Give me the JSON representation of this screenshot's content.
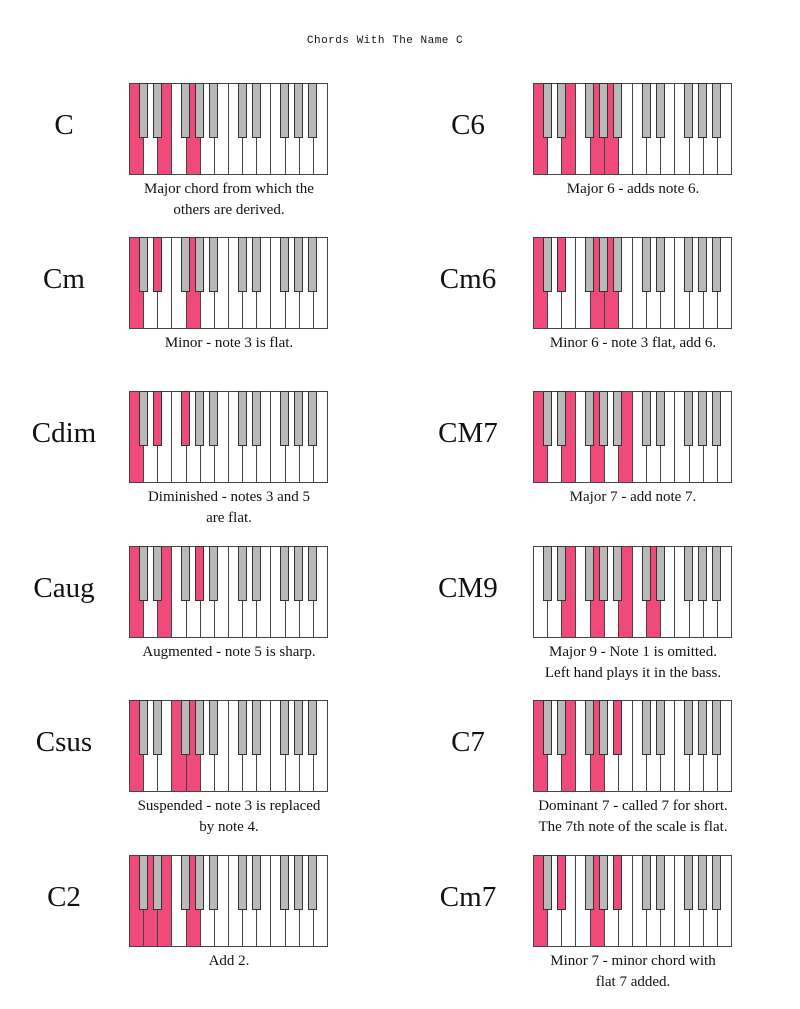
{
  "title": "Chords With The Name C",
  "colors": {
    "highlight": "#ef4a79",
    "black_key": "#b9b9b9",
    "white_key": "#ffffff"
  },
  "keyboard_range": "two octaves C to B",
  "chords": [
    {
      "name": "C",
      "caption": [
        "Major chord from which the",
        "others are derived."
      ],
      "notes": [
        "C1",
        "E1",
        "G1"
      ]
    },
    {
      "name": "C6",
      "caption": [
        "Major 6 - adds note 6."
      ],
      "notes": [
        "C1",
        "E1",
        "G1",
        "A1"
      ]
    },
    {
      "name": "Cm",
      "caption": [
        "Minor - note 3 is flat."
      ],
      "notes": [
        "C1",
        "D#1",
        "G1"
      ]
    },
    {
      "name": "Cm6",
      "caption": [
        "Minor 6 - note 3 flat, add 6."
      ],
      "notes": [
        "C1",
        "D#1",
        "G1",
        "A1"
      ]
    },
    {
      "name": "Cdim",
      "caption": [
        "Diminished - notes 3 and 5",
        "are flat."
      ],
      "notes": [
        "C1",
        "D#1",
        "F#1"
      ]
    },
    {
      "name": "CM7",
      "caption": [
        "Major 7 - add note 7."
      ],
      "notes": [
        "C1",
        "E1",
        "G1",
        "B1"
      ]
    },
    {
      "name": "Caug",
      "caption": [
        "Augmented - note 5 is sharp."
      ],
      "notes": [
        "C1",
        "E1",
        "G#1"
      ]
    },
    {
      "name": "CM9",
      "caption": [
        "Major 9 - Note 1 is omitted.",
        "Left hand plays it in the bass."
      ],
      "notes": [
        "E1",
        "G1",
        "B1",
        "D2"
      ]
    },
    {
      "name": "Csus",
      "caption": [
        "Suspended - note 3 is replaced",
        "by note 4."
      ],
      "notes": [
        "C1",
        "F1",
        "G1"
      ]
    },
    {
      "name": "C7",
      "caption": [
        "Dominant 7 - called 7 for short.",
        "The 7th note of the scale is flat."
      ],
      "notes": [
        "C1",
        "E1",
        "G1",
        "A#1"
      ]
    },
    {
      "name": "C2",
      "caption": [
        "Add 2."
      ],
      "notes": [
        "C1",
        "D1",
        "E1",
        "G1"
      ]
    },
    {
      "name": "Cm7",
      "caption": [
        "Minor 7 - minor chord with",
        "flat 7 added."
      ],
      "notes": [
        "C1",
        "D#1",
        "G1",
        "A#1"
      ]
    }
  ]
}
